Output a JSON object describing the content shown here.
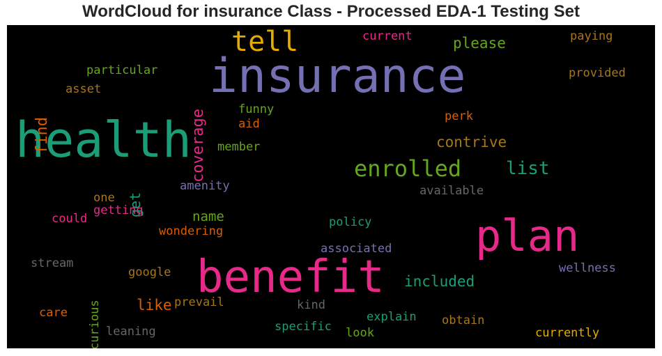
{
  "title": "WordCloud for insurance Class - Processed EDA-1 Testing Set",
  "chart_data": {
    "type": "wordcloud",
    "title": "WordCloud for insurance Class - Processed EDA-1 Testing Set",
    "words": [
      {
        "text": "insurance",
        "rank": 2,
        "color": "#7570b3"
      },
      {
        "text": "health",
        "rank": 1,
        "color": "#1b9e77"
      },
      {
        "text": "benefit",
        "rank": 3,
        "color": "#e7298a"
      },
      {
        "text": "plan",
        "rank": 4,
        "color": "#e7298a"
      },
      {
        "text": "tell",
        "rank": 5,
        "color": "#e6ab02"
      },
      {
        "text": "enrolled",
        "rank": 6,
        "color": "#66a61e"
      },
      {
        "text": "coverage",
        "rank": 7,
        "color": "#e7298a"
      },
      {
        "text": "list",
        "rank": 8,
        "color": "#1b9e77"
      },
      {
        "text": "contrive",
        "rank": 9,
        "color": "#a6761d"
      },
      {
        "text": "please",
        "rank": 10,
        "color": "#66a61e"
      },
      {
        "text": "find",
        "rank": 11,
        "color": "#d95f02"
      },
      {
        "text": "get",
        "rank": 12,
        "color": "#1b9e77"
      },
      {
        "text": "included",
        "rank": 13,
        "color": "#1b9e77"
      },
      {
        "text": "like",
        "rank": 14,
        "color": "#d95f02"
      },
      {
        "text": "name",
        "rank": 15,
        "color": "#66a61e"
      },
      {
        "text": "current",
        "rank": 16,
        "color": "#e7298a"
      },
      {
        "text": "paying",
        "rank": 17,
        "color": "#a6761d"
      },
      {
        "text": "provided",
        "rank": 18,
        "color": "#a6761d"
      },
      {
        "text": "particular",
        "rank": 19,
        "color": "#66a61e"
      },
      {
        "text": "asset",
        "rank": 20,
        "color": "#a6761d"
      },
      {
        "text": "funny",
        "rank": 21,
        "color": "#66a61e"
      },
      {
        "text": "aid",
        "rank": 22,
        "color": "#d95f02"
      },
      {
        "text": "perk",
        "rank": 23,
        "color": "#d95f02"
      },
      {
        "text": "member",
        "rank": 24,
        "color": "#66a61e"
      },
      {
        "text": "amenity",
        "rank": 25,
        "color": "#7570b3"
      },
      {
        "text": "available",
        "rank": 26,
        "color": "#666666"
      },
      {
        "text": "one",
        "rank": 27,
        "color": "#a6761d"
      },
      {
        "text": "getting",
        "rank": 28,
        "color": "#e7298a"
      },
      {
        "text": "could",
        "rank": 29,
        "color": "#e7298a"
      },
      {
        "text": "policy",
        "rank": 30,
        "color": "#1b9e77"
      },
      {
        "text": "wondering",
        "rank": 31,
        "color": "#d95f02"
      },
      {
        "text": "associated",
        "rank": 32,
        "color": "#7570b3"
      },
      {
        "text": "stream",
        "rank": 33,
        "color": "#666666"
      },
      {
        "text": "curious",
        "rank": 34,
        "color": "#66a61e"
      },
      {
        "text": "google",
        "rank": 35,
        "color": "#a6761d"
      },
      {
        "text": "wellness",
        "rank": 36,
        "color": "#7570b3"
      },
      {
        "text": "prevail",
        "rank": 37,
        "color": "#a6761d"
      },
      {
        "text": "kind",
        "rank": 38,
        "color": "#666666"
      },
      {
        "text": "care",
        "rank": 39,
        "color": "#d95f02"
      },
      {
        "text": "explain",
        "rank": 40,
        "color": "#1b9e77"
      },
      {
        "text": "obtain",
        "rank": 41,
        "color": "#a6761d"
      },
      {
        "text": "leaning",
        "rank": 42,
        "color": "#666666"
      },
      {
        "text": "specific",
        "rank": 43,
        "color": "#1b9e77"
      },
      {
        "text": "look",
        "rank": 44,
        "color": "#66a61e"
      },
      {
        "text": "currently",
        "rank": 45,
        "color": "#e6ab02"
      }
    ]
  }
}
